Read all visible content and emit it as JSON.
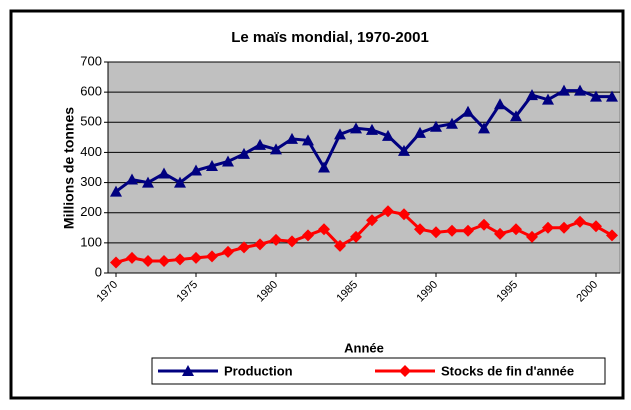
{
  "chart_data": {
    "type": "line",
    "title": "Le maïs mondial, 1970-2001",
    "xlabel": "Année",
    "ylabel": "Millions de tonnes",
    "x": [
      1970,
      1971,
      1972,
      1973,
      1974,
      1975,
      1976,
      1977,
      1978,
      1979,
      1980,
      1981,
      1982,
      1983,
      1984,
      1985,
      1986,
      1987,
      1988,
      1989,
      1990,
      1991,
      1992,
      1993,
      1994,
      1995,
      1996,
      1997,
      1998,
      1999,
      2000,
      2001
    ],
    "xlim": [
      1969.5,
      2001.5
    ],
    "xticks": [
      1970,
      1975,
      1980,
      1985,
      1990,
      1995,
      2000
    ],
    "ylim": [
      0,
      700
    ],
    "yticks": [
      0,
      100,
      200,
      300,
      400,
      500,
      600,
      700
    ],
    "grid": true,
    "legend": "bottom",
    "series": [
      {
        "name": "Production",
        "color": "#000080",
        "marker": "triangle",
        "values": [
          270,
          310,
          300,
          330,
          300,
          340,
          355,
          370,
          395,
          425,
          410,
          445,
          440,
          350,
          460,
          480,
          475,
          455,
          405,
          465,
          485,
          495,
          535,
          480,
          560,
          520,
          590,
          575,
          605,
          605,
          585,
          585
        ]
      },
      {
        "name": "Stocks de fin d'année",
        "color": "#ff0000",
        "marker": "diamond",
        "values": [
          35,
          50,
          40,
          40,
          45,
          50,
          55,
          70,
          85,
          95,
          110,
          105,
          125,
          145,
          90,
          120,
          175,
          205,
          195,
          145,
          135,
          140,
          140,
          160,
          130,
          145,
          120,
          150,
          150,
          170,
          155,
          125
        ]
      }
    ]
  }
}
